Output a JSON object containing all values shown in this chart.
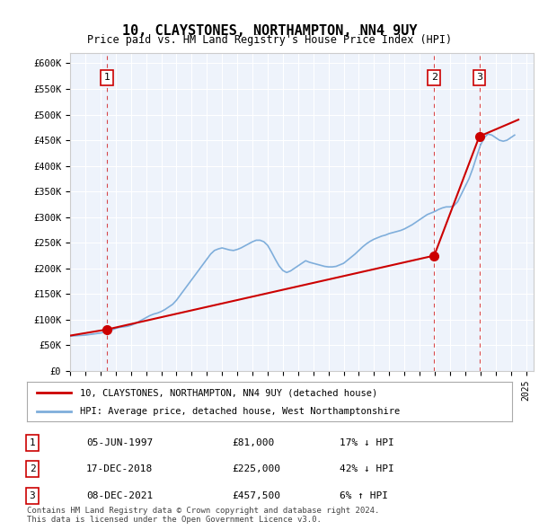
{
  "title": "10, CLAYSTONES, NORTHAMPTON, NN4 9UY",
  "subtitle": "Price paid vs. HM Land Registry's House Price Index (HPI)",
  "xlabel": "",
  "ylabel": "",
  "ylim": [
    0,
    620000
  ],
  "yticks": [
    0,
    50000,
    100000,
    150000,
    200000,
    250000,
    300000,
    350000,
    400000,
    450000,
    500000,
    550000,
    600000
  ],
  "ytick_labels": [
    "£0",
    "£50K",
    "£100K",
    "£150K",
    "£200K",
    "£250K",
    "£300K",
    "£350K",
    "£400K",
    "£450K",
    "£500K",
    "£550K",
    "£600K"
  ],
  "background_color": "#eef3fb",
  "plot_bg_color": "#eef3fb",
  "hpi_color": "#7faedb",
  "price_color": "#cc0000",
  "dashed_line_color": "#cc0000",
  "marker_color": "#cc0000",
  "sale_dates": [
    1997.43,
    2018.96,
    2021.93
  ],
  "sale_prices": [
    81000,
    225000,
    457500
  ],
  "sale_labels": [
    "1",
    "2",
    "3"
  ],
  "legend_label_red": "10, CLAYSTONES, NORTHAMPTON, NN4 9UY (detached house)",
  "legend_label_blue": "HPI: Average price, detached house, West Northamptonshire",
  "table_rows": [
    {
      "num": "1",
      "date": "05-JUN-1997",
      "price": "£81,000",
      "hpi": "17% ↓ HPI"
    },
    {
      "num": "2",
      "date": "17-DEC-2018",
      "price": "£225,000",
      "hpi": "42% ↓ HPI"
    },
    {
      "num": "3",
      "date": "08-DEC-2021",
      "price": "£457,500",
      "hpi": "6% ↑ HPI"
    }
  ],
  "copyright_text": "Contains HM Land Registry data © Crown copyright and database right 2024.\nThis data is licensed under the Open Government Licence v3.0.",
  "hpi_data": {
    "years": [
      1995,
      1995.25,
      1995.5,
      1995.75,
      1996,
      1996.25,
      1996.5,
      1996.75,
      1997,
      1997.25,
      1997.5,
      1997.75,
      1998,
      1998.25,
      1998.5,
      1998.75,
      1999,
      1999.25,
      1999.5,
      1999.75,
      2000,
      2000.25,
      2000.5,
      2000.75,
      2001,
      2001.25,
      2001.5,
      2001.75,
      2002,
      2002.25,
      2002.5,
      2002.75,
      2003,
      2003.25,
      2003.5,
      2003.75,
      2004,
      2004.25,
      2004.5,
      2004.75,
      2005,
      2005.25,
      2005.5,
      2005.75,
      2006,
      2006.25,
      2006.5,
      2006.75,
      2007,
      2007.25,
      2007.5,
      2007.75,
      2008,
      2008.25,
      2008.5,
      2008.75,
      2009,
      2009.25,
      2009.5,
      2009.75,
      2010,
      2010.25,
      2010.5,
      2010.75,
      2011,
      2011.25,
      2011.5,
      2011.75,
      2012,
      2012.25,
      2012.5,
      2012.75,
      2013,
      2013.25,
      2013.5,
      2013.75,
      2014,
      2014.25,
      2014.5,
      2014.75,
      2015,
      2015.25,
      2015.5,
      2015.75,
      2016,
      2016.25,
      2016.5,
      2016.75,
      2017,
      2017.25,
      2017.5,
      2017.75,
      2018,
      2018.25,
      2018.5,
      2018.75,
      2019,
      2019.25,
      2019.5,
      2019.75,
      2020,
      2020.25,
      2020.5,
      2020.75,
      2021,
      2021.25,
      2021.5,
      2021.75,
      2022,
      2022.25,
      2022.5,
      2022.75,
      2023,
      2023.25,
      2023.5,
      2023.75,
      2024,
      2024.25
    ],
    "values": [
      68000,
      68500,
      69000,
      69500,
      70000,
      71000,
      72000,
      73000,
      74000,
      76000,
      78000,
      80000,
      83000,
      85000,
      86000,
      87000,
      89000,
      92000,
      96000,
      100000,
      104000,
      108000,
      111000,
      113000,
      116000,
      120000,
      125000,
      130000,
      138000,
      148000,
      158000,
      168000,
      178000,
      188000,
      198000,
      208000,
      218000,
      228000,
      235000,
      238000,
      240000,
      238000,
      236000,
      235000,
      237000,
      240000,
      244000,
      248000,
      252000,
      255000,
      255000,
      252000,
      245000,
      232000,
      218000,
      205000,
      196000,
      192000,
      195000,
      200000,
      205000,
      210000,
      215000,
      212000,
      210000,
      208000,
      206000,
      204000,
      203000,
      203000,
      204000,
      207000,
      210000,
      216000,
      222000,
      228000,
      235000,
      242000,
      248000,
      253000,
      257000,
      260000,
      263000,
      265000,
      268000,
      270000,
      272000,
      274000,
      277000,
      281000,
      285000,
      290000,
      295000,
      300000,
      305000,
      308000,
      311000,
      315000,
      318000,
      320000,
      320000,
      322000,
      330000,
      345000,
      360000,
      375000,
      395000,
      418000,
      440000,
      455000,
      462000,
      460000,
      455000,
      450000,
      448000,
      450000,
      455000,
      460000
    ]
  },
  "price_line_data": {
    "years": [
      1995,
      1997.43,
      1997.43,
      2018.96,
      2018.96,
      2021.93,
      2021.93,
      2024.25
    ],
    "values": [
      68000,
      81000,
      81000,
      225000,
      225000,
      457500,
      457500,
      480000
    ]
  }
}
